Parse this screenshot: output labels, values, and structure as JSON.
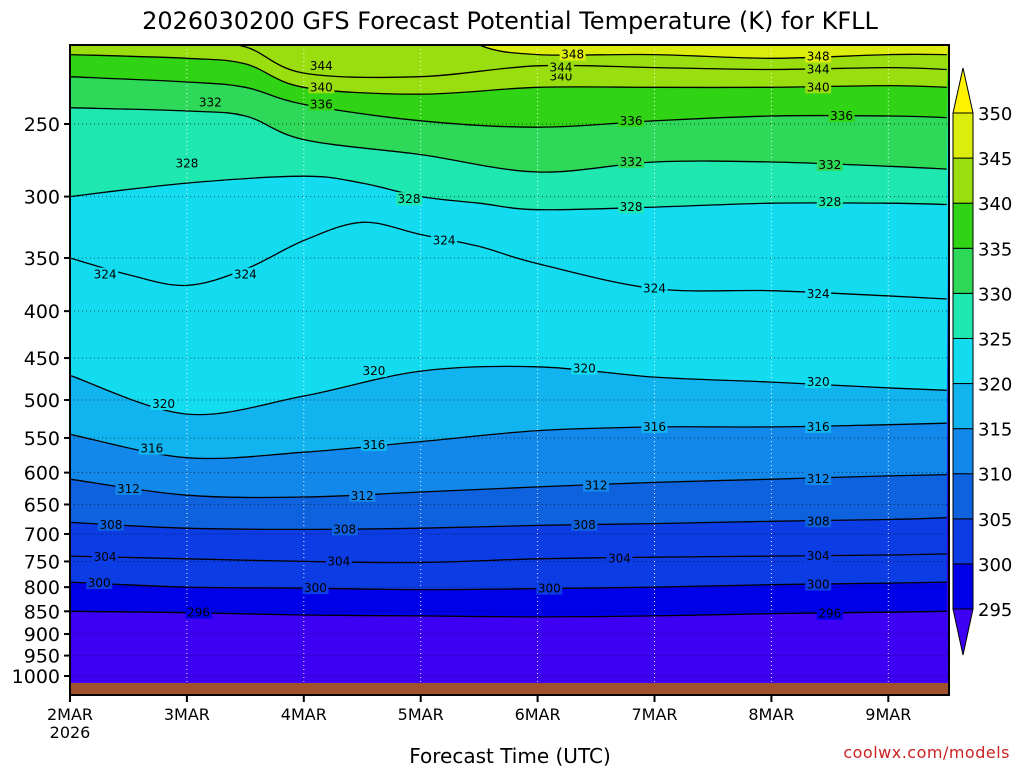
{
  "chart_data": {
    "type": "heatmap",
    "title": "2026030200 GFS Forecast Potential Temperature (K) for KFLL",
    "xlabel": "Forecast Time (UTC)",
    "ylabel": "",
    "credit": "coolwx.com/models",
    "x_start_year_label": "2026",
    "x_ticks": [
      "2MAR",
      "3MAR",
      "4MAR",
      "5MAR",
      "6MAR",
      "7MAR",
      "8MAR",
      "9MAR"
    ],
    "xlim_days": [
      0,
      7.5
    ],
    "y_ticks": [
      250,
      300,
      350,
      400,
      450,
      500,
      550,
      600,
      650,
      700,
      750,
      800,
      850,
      900,
      950,
      1000
    ],
    "ylim_hPa": [
      200,
      1013
    ],
    "y_scale": "log-pressure",
    "colorbar": {
      "labels": [
        295,
        300,
        305,
        310,
        315,
        320,
        325,
        330,
        335,
        340,
        345,
        350
      ],
      "bins": [
        {
          "lo": 290,
          "hi": 295,
          "color": "#3d00f2"
        },
        {
          "lo": 295,
          "hi": 300,
          "color": "#0000e8"
        },
        {
          "lo": 300,
          "hi": 305,
          "color": "#0c3ce4"
        },
        {
          "lo": 305,
          "hi": 310,
          "color": "#0f62de"
        },
        {
          "lo": 310,
          "hi": 315,
          "color": "#1288ea"
        },
        {
          "lo": 315,
          "hi": 320,
          "color": "#12b4f0"
        },
        {
          "lo": 320,
          "hi": 325,
          "color": "#14dcf0"
        },
        {
          "lo": 325,
          "hi": 330,
          "color": "#1ee8b0"
        },
        {
          "lo": 330,
          "hi": 335,
          "color": "#2ed858"
        },
        {
          "lo": 335,
          "hi": 340,
          "color": "#30d414"
        },
        {
          "lo": 340,
          "hi": 345,
          "color": "#9ade10"
        },
        {
          "lo": 345,
          "hi": 350,
          "color": "#dcec0c"
        },
        {
          "lo": 350,
          "hi": 360,
          "color": "#fff200"
        }
      ]
    },
    "contours": [
      {
        "level": 296,
        "points": [
          [
            0,
            850
          ],
          [
            1,
            853
          ],
          [
            2,
            858
          ],
          [
            3,
            860
          ],
          [
            4,
            862
          ],
          [
            5,
            860
          ],
          [
            6,
            855
          ],
          [
            7,
            852
          ],
          [
            7.5,
            850
          ]
        ],
        "labels": [
          [
            1.1,
            853
          ],
          [
            6.5,
            855
          ]
        ]
      },
      {
        "level": 300,
        "points": [
          [
            0,
            790
          ],
          [
            1,
            800
          ],
          [
            2,
            802
          ],
          [
            3,
            805
          ],
          [
            4,
            803
          ],
          [
            5,
            800
          ],
          [
            6,
            795
          ],
          [
            7,
            792
          ],
          [
            7.5,
            790
          ]
        ],
        "labels": [
          [
            0.25,
            792
          ],
          [
            2.1,
            802
          ],
          [
            4.1,
            803
          ],
          [
            6.4,
            795
          ]
        ]
      },
      {
        "level": 304,
        "points": [
          [
            0,
            740
          ],
          [
            1,
            745
          ],
          [
            2,
            750
          ],
          [
            3,
            752
          ],
          [
            4,
            745
          ],
          [
            5,
            742
          ],
          [
            6,
            740
          ],
          [
            7,
            738
          ],
          [
            7.5,
            736
          ]
        ],
        "labels": [
          [
            0.3,
            742
          ],
          [
            2.3,
            750
          ],
          [
            4.7,
            744
          ],
          [
            6.4,
            740
          ]
        ]
      },
      {
        "level": 308,
        "points": [
          [
            0,
            680
          ],
          [
            1,
            690
          ],
          [
            2,
            692
          ],
          [
            3,
            690
          ],
          [
            4,
            685
          ],
          [
            5,
            682
          ],
          [
            6,
            678
          ],
          [
            7,
            675
          ],
          [
            7.5,
            672
          ]
        ],
        "labels": [
          [
            0.35,
            684
          ],
          [
            2.35,
            692
          ],
          [
            4.4,
            684
          ],
          [
            6.4,
            678
          ]
        ]
      },
      {
        "level": 312,
        "points": [
          [
            0,
            610
          ],
          [
            1,
            635
          ],
          [
            2,
            638
          ],
          [
            3,
            630
          ],
          [
            4,
            622
          ],
          [
            5,
            615
          ],
          [
            6,
            610
          ],
          [
            7,
            605
          ],
          [
            7.5,
            603
          ]
        ],
        "labels": [
          [
            0.5,
            625
          ],
          [
            2.5,
            636
          ],
          [
            4.5,
            620
          ],
          [
            6.4,
            610
          ]
        ]
      },
      {
        "level": 316,
        "points": [
          [
            0,
            545
          ],
          [
            1,
            578
          ],
          [
            2,
            570
          ],
          [
            3,
            555
          ],
          [
            4,
            540
          ],
          [
            5,
            535
          ],
          [
            6,
            535
          ],
          [
            7,
            532
          ],
          [
            7.5,
            530
          ]
        ],
        "labels": [
          [
            0.7,
            565
          ],
          [
            2.6,
            560
          ],
          [
            5.0,
            535
          ],
          [
            6.4,
            535
          ]
        ]
      },
      {
        "level": 320,
        "points": [
          [
            0,
            470
          ],
          [
            1,
            518
          ],
          [
            2,
            495
          ],
          [
            3,
            465
          ],
          [
            4,
            460
          ],
          [
            5,
            472
          ],
          [
            6,
            478
          ],
          [
            7,
            485
          ],
          [
            7.5,
            488
          ]
        ],
        "labels": [
          [
            0.8,
            505
          ],
          [
            2.6,
            465
          ],
          [
            4.4,
            462
          ],
          [
            6.4,
            478
          ]
        ]
      },
      {
        "level": 324,
        "points": [
          [
            0,
            350
          ],
          [
            0.5,
            365
          ],
          [
            1,
            375
          ],
          [
            1.5,
            360
          ],
          [
            2,
            335
          ],
          [
            2.5,
            320
          ],
          [
            3,
            330
          ],
          [
            3.5,
            340
          ],
          [
            4,
            355
          ],
          [
            5,
            378
          ],
          [
            6,
            380
          ],
          [
            7,
            385
          ],
          [
            7.5,
            388
          ]
        ],
        "labels": [
          [
            0.3,
            365
          ],
          [
            1.5,
            365
          ],
          [
            3.2,
            335
          ],
          [
            5.0,
            378
          ],
          [
            6.4,
            383
          ]
        ]
      },
      {
        "level": 328,
        "points": [
          [
            0,
            300
          ],
          [
            1,
            290
          ],
          [
            2,
            285
          ],
          [
            2.5,
            290
          ],
          [
            3,
            300
          ],
          [
            3.5,
            305
          ],
          [
            4,
            310
          ],
          [
            5,
            308
          ],
          [
            6,
            305
          ],
          [
            7,
            305
          ],
          [
            7.5,
            306
          ]
        ],
        "labels": [
          [
            1.0,
            276
          ],
          [
            2.9,
            302
          ],
          [
            4.8,
            308
          ],
          [
            6.5,
            304
          ]
        ]
      },
      {
        "level": 332,
        "points": [
          [
            0,
            240
          ],
          [
            1,
            242
          ],
          [
            1.5,
            245
          ],
          [
            2,
            260
          ],
          [
            3,
            270
          ],
          [
            4,
            282
          ],
          [
            5,
            275
          ],
          [
            6,
            275
          ],
          [
            7,
            278
          ],
          [
            7.5,
            280
          ]
        ],
        "labels": [
          [
            1.2,
            237
          ],
          [
            4.8,
            275
          ],
          [
            6.5,
            277
          ]
        ]
      },
      {
        "level": 336,
        "points": [
          [
            0,
            222
          ],
          [
            1,
            225
          ],
          [
            1.5,
            228
          ],
          [
            2,
            238
          ],
          [
            3,
            248
          ],
          [
            4,
            252
          ],
          [
            5,
            248
          ],
          [
            6,
            245
          ],
          [
            7,
            245
          ],
          [
            7.5,
            246
          ]
        ],
        "labels": [
          [
            2.15,
            238
          ],
          [
            4.8,
            248
          ],
          [
            6.6,
            245
          ]
        ]
      },
      {
        "level": 340,
        "points": [
          [
            0,
            210
          ],
          [
            1,
            212
          ],
          [
            1.5,
            215
          ],
          [
            2,
            228
          ],
          [
            3,
            232
          ],
          [
            4,
            228
          ],
          [
            5,
            228
          ],
          [
            6,
            228
          ],
          [
            7,
            227
          ],
          [
            7.5,
            228
          ]
        ],
        "labels": [
          [
            2.15,
            228
          ],
          [
            4.2,
            222
          ],
          [
            6.4,
            228
          ]
        ]
      },
      {
        "level": 344,
        "points": [
          [
            0,
            202
          ],
          [
            1,
            203
          ],
          [
            1.5,
            206
          ],
          [
            2,
            220
          ],
          [
            3,
            222
          ],
          [
            4,
            216
          ],
          [
            5,
            217
          ],
          [
            6,
            218
          ],
          [
            7,
            217
          ],
          [
            7.5,
            218
          ]
        ],
        "labels": [
          [
            2.15,
            216
          ],
          [
            4.2,
            217
          ],
          [
            6.4,
            218
          ]
        ]
      },
      {
        "level": 348,
        "points": [
          [
            3.5,
            205
          ],
          [
            4,
            210
          ],
          [
            5,
            210
          ],
          [
            6,
            212
          ],
          [
            7,
            210
          ],
          [
            7.5,
            210
          ]
        ],
        "labels": [
          [
            4.3,
            210
          ],
          [
            6.4,
            211
          ]
        ]
      }
    ]
  }
}
